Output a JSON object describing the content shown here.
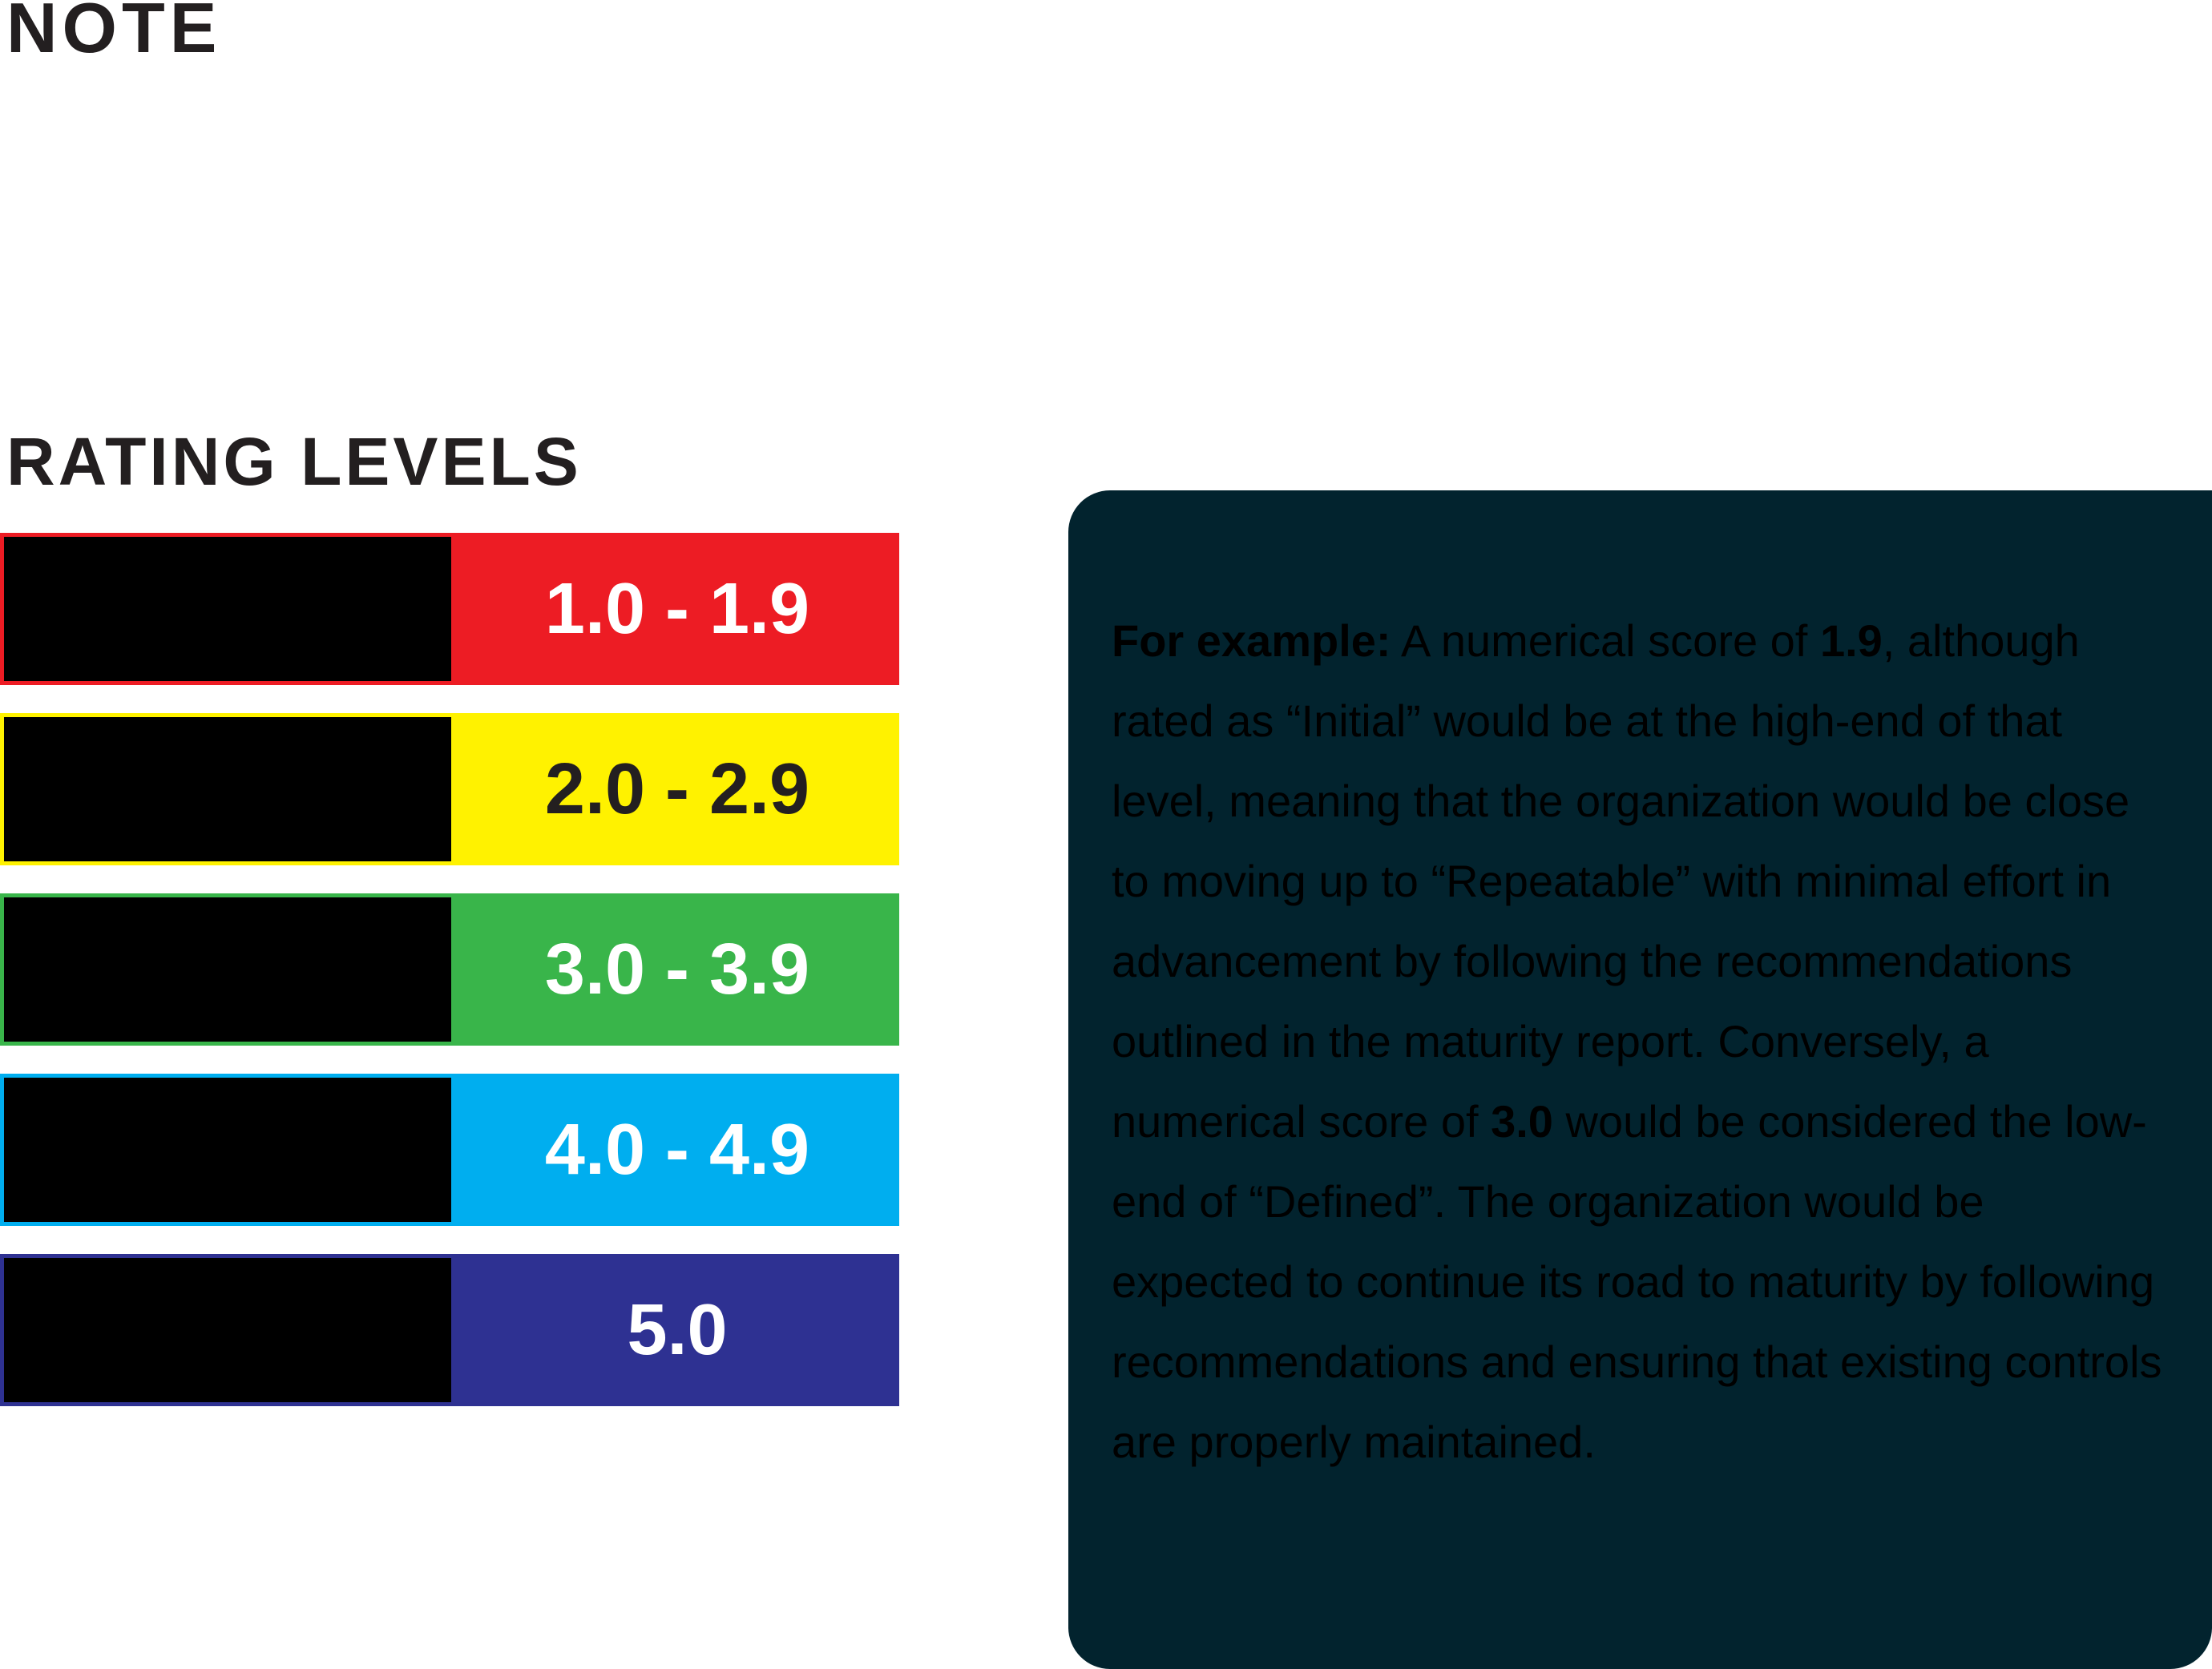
{
  "note": {
    "title": "NOTE"
  },
  "rating_levels": {
    "title": "RATING LEVELS",
    "items": [
      {
        "range": "1.0 - 1.9",
        "color": "#ed1c24",
        "text_color": "#ffffff"
      },
      {
        "range": "2.0 - 2.9",
        "color": "#fff200",
        "text_color": "#231f20"
      },
      {
        "range": "3.0 - 3.9",
        "color": "#39b54a",
        "text_color": "#ffffff"
      },
      {
        "range": "4.0 - 4.9",
        "color": "#00aeef",
        "text_color": "#ffffff"
      },
      {
        "range": "5.0",
        "color": "#2e3192",
        "text_color": "#ffffff"
      }
    ]
  },
  "example": {
    "lead": "For example:",
    "part1": " A numerical score of ",
    "score1": "1.9",
    "part2": ", although rated as “Initial” would be at the high-end of that level, meaning that the organization would be close to moving up to “Repeatable” with minimal effort in advancement by following the recommendations outlined in the maturity report. Conversely, a numerical score of ",
    "score2": "3.0",
    "part3": " would be considered the low-end of “Defined”. The organization would be expected to continue its road to maturity by following recommendations and ensuring that existing controls are properly maintained.",
    "box_color": "#02232e",
    "text_color": "#000000"
  }
}
